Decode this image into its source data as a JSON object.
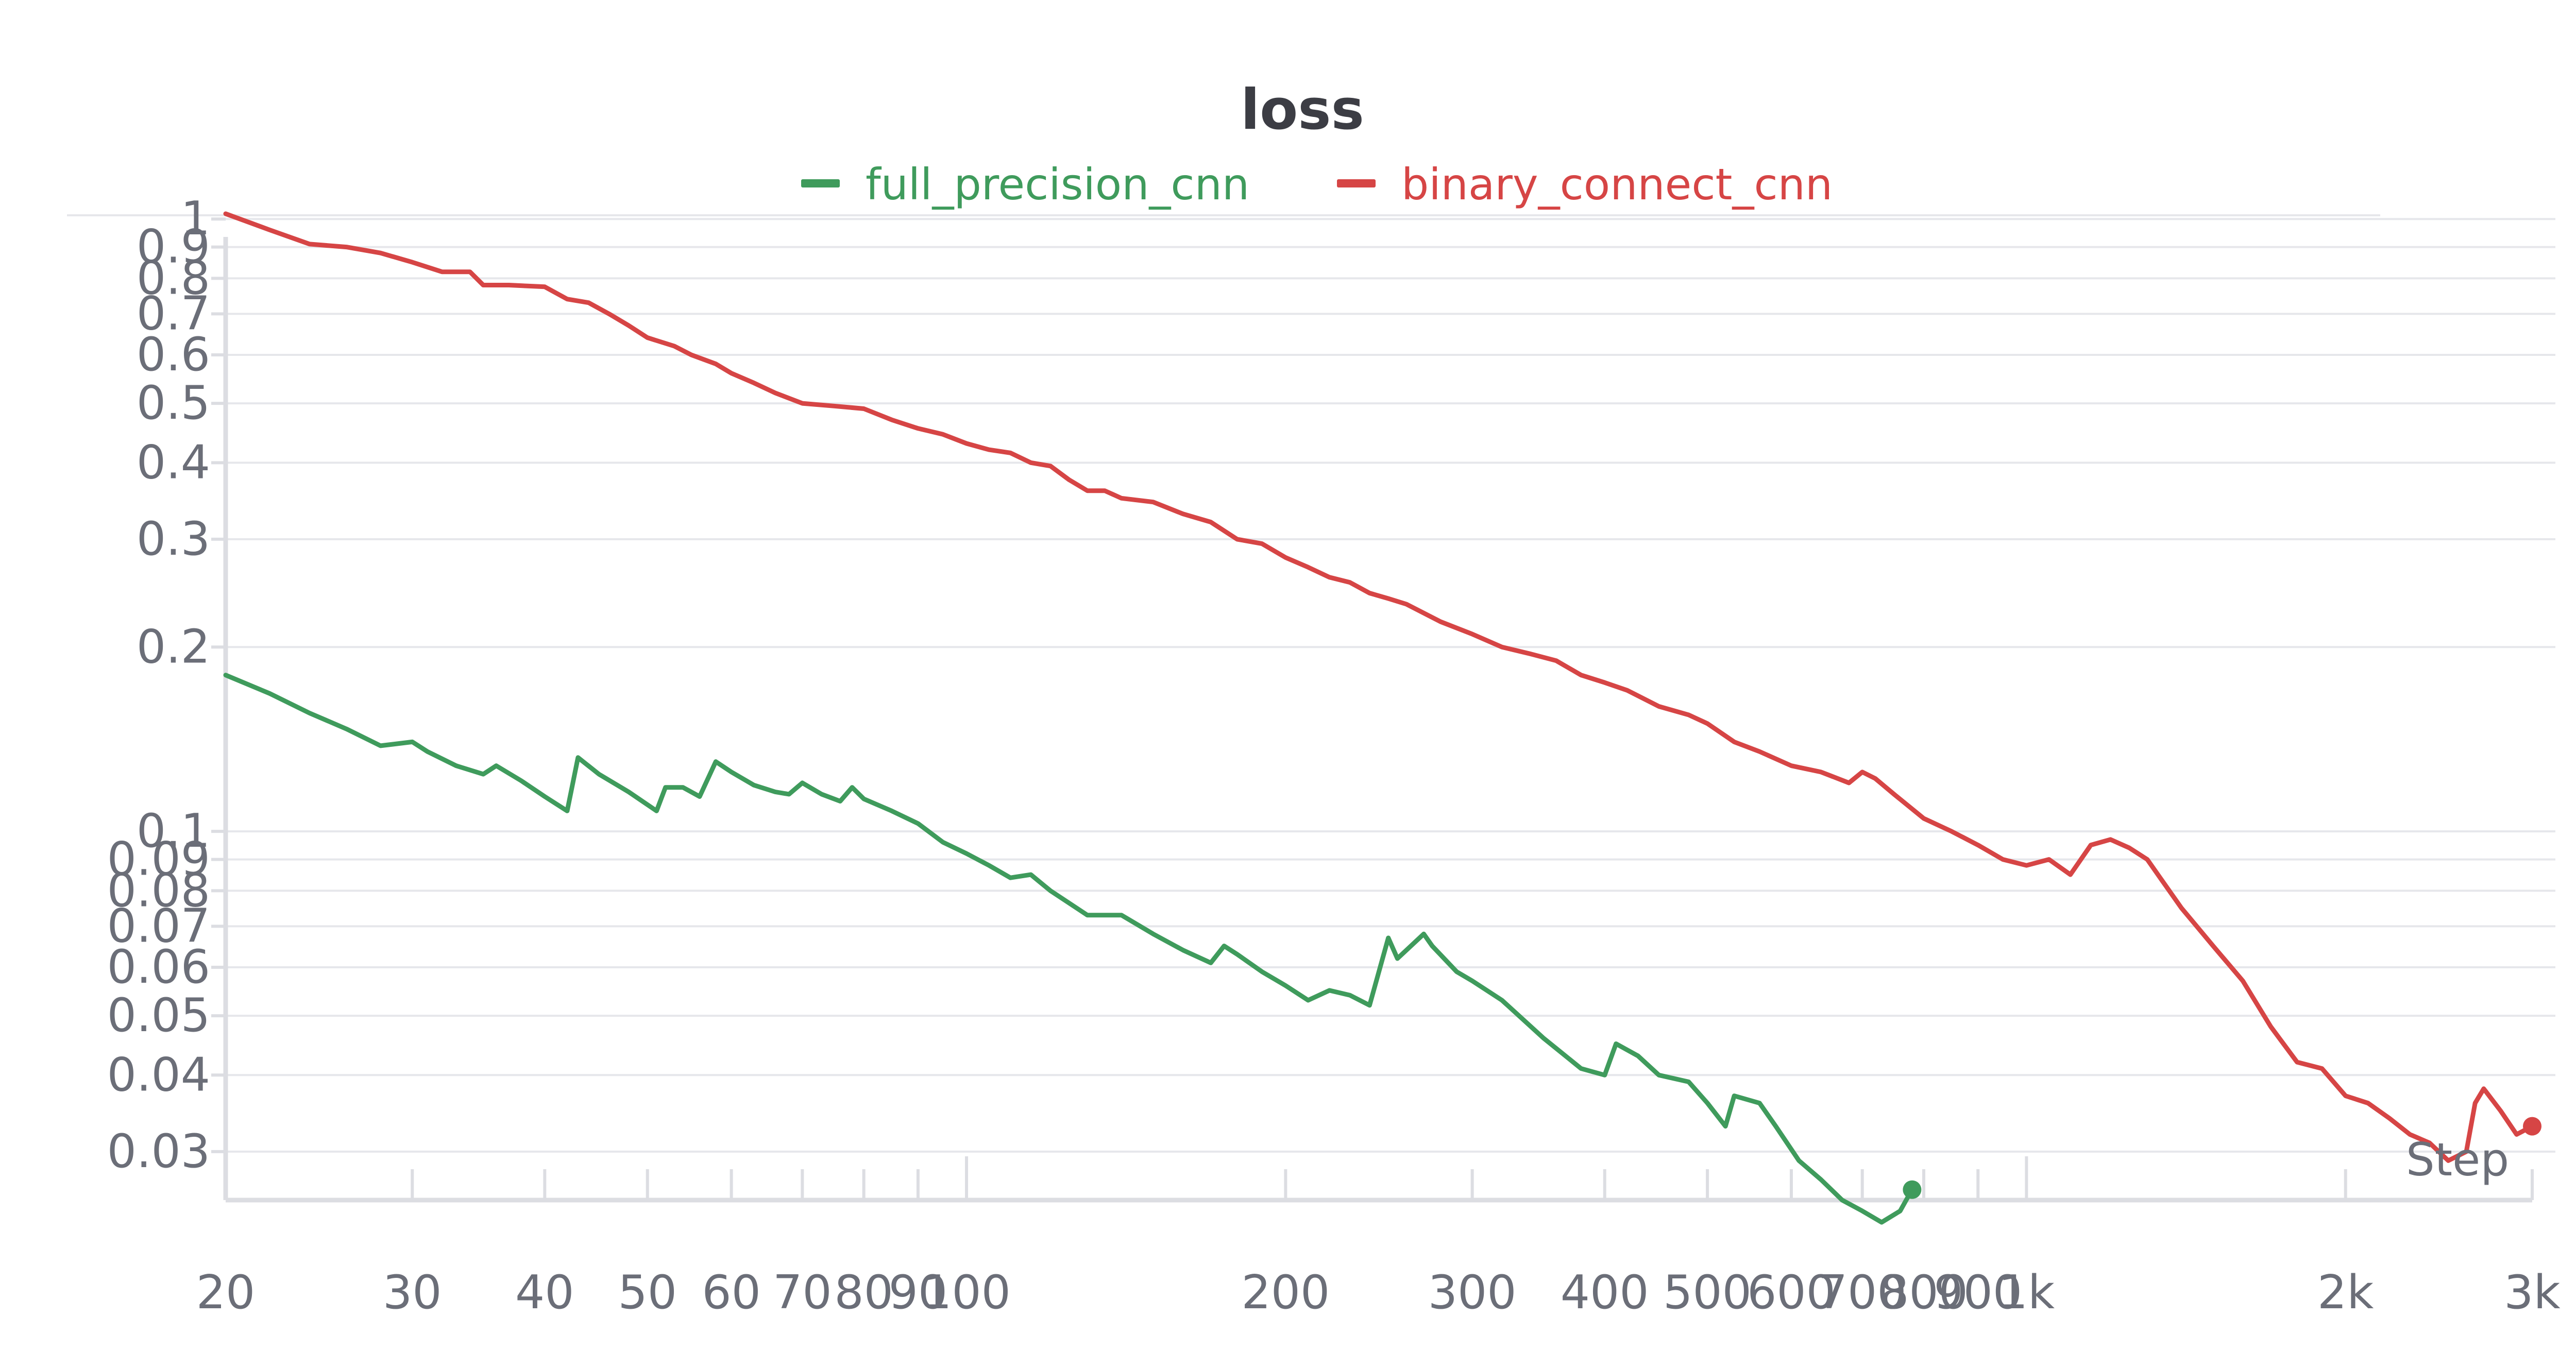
{
  "chart_data": {
    "type": "line",
    "title": "loss",
    "xlabel": "Step",
    "ylabel": "",
    "x_scale": "log",
    "y_scale": "log",
    "xlim": [
      20,
      3000
    ],
    "ylim": [
      0.025,
      1.05
    ],
    "grid": true,
    "legend_position": "top-center",
    "x_ticks": [
      {
        "value": 20,
        "label": "20"
      },
      {
        "value": 30,
        "label": "30"
      },
      {
        "value": 40,
        "label": "40"
      },
      {
        "value": 50,
        "label": "50"
      },
      {
        "value": 60,
        "label": "60"
      },
      {
        "value": 70,
        "label": "70"
      },
      {
        "value": 80,
        "label": "80"
      },
      {
        "value": 90,
        "label": "90"
      },
      {
        "value": 100,
        "label": "100"
      },
      {
        "value": 200,
        "label": "200"
      },
      {
        "value": 300,
        "label": "300"
      },
      {
        "value": 400,
        "label": "400"
      },
      {
        "value": 500,
        "label": "500"
      },
      {
        "value": 600,
        "label": "600"
      },
      {
        "value": 700,
        "label": "700"
      },
      {
        "value": 800,
        "label": "800"
      },
      {
        "value": 900,
        "label": "900"
      },
      {
        "value": 1000,
        "label": "1k"
      },
      {
        "value": 2000,
        "label": "2k"
      },
      {
        "value": 3000,
        "label": "3k"
      }
    ],
    "y_ticks": [
      {
        "value": 1,
        "label": "1"
      },
      {
        "value": 0.9,
        "label": "0.9"
      },
      {
        "value": 0.8,
        "label": "0.8"
      },
      {
        "value": 0.7,
        "label": "0.7"
      },
      {
        "value": 0.6,
        "label": "0.6"
      },
      {
        "value": 0.5,
        "label": "0.5"
      },
      {
        "value": 0.4,
        "label": "0.4"
      },
      {
        "value": 0.3,
        "label": "0.3"
      },
      {
        "value": 0.2,
        "label": "0.2"
      },
      {
        "value": 0.1,
        "label": "0.1"
      },
      {
        "value": 0.09,
        "label": "0.09"
      },
      {
        "value": 0.08,
        "label": "0.08"
      },
      {
        "value": 0.07,
        "label": "0.07"
      },
      {
        "value": 0.06,
        "label": "0.06"
      },
      {
        "value": 0.05,
        "label": "0.05"
      },
      {
        "value": 0.04,
        "label": "0.04"
      },
      {
        "value": 0.03,
        "label": "0.03"
      }
    ],
    "series": [
      {
        "name": "full_precision_cnn",
        "color": "#3f9b5c",
        "x": [
          20,
          22,
          24,
          26,
          28,
          30,
          31,
          33,
          35,
          36,
          38,
          40,
          42,
          43,
          45,
          48,
          51,
          52,
          54,
          56,
          58,
          60,
          63,
          66,
          68,
          70,
          73,
          76,
          78,
          80,
          85,
          90,
          95,
          100,
          105,
          110,
          115,
          120,
          130,
          140,
          150,
          160,
          170,
          175,
          180,
          190,
          200,
          210,
          220,
          230,
          240,
          250,
          255,
          270,
          275,
          290,
          300,
          320,
          350,
          380,
          400,
          410,
          430,
          450,
          480,
          500,
          520,
          530,
          560,
          580,
          610,
          640,
          670,
          700,
          730,
          760,
          770,
          780
        ],
        "y": [
          0.18,
          0.168,
          0.156,
          0.147,
          0.138,
          0.14,
          0.135,
          0.128,
          0.124,
          0.128,
          0.121,
          0.114,
          0.108,
          0.132,
          0.124,
          0.116,
          0.108,
          0.118,
          0.118,
          0.114,
          0.13,
          0.125,
          0.119,
          0.116,
          0.115,
          0.12,
          0.115,
          0.112,
          0.118,
          0.113,
          0.108,
          0.103,
          0.096,
          0.092,
          0.088,
          0.084,
          0.085,
          0.08,
          0.073,
          0.073,
          0.068,
          0.064,
          0.061,
          0.065,
          0.063,
          0.059,
          0.056,
          0.053,
          0.055,
          0.054,
          0.052,
          0.067,
          0.062,
          0.068,
          0.065,
          0.059,
          0.057,
          0.053,
          0.046,
          0.041,
          0.04,
          0.045,
          0.043,
          0.04,
          0.039,
          0.036,
          0.033,
          0.037,
          0.036,
          0.033,
          0.029,
          0.027,
          0.025,
          0.024,
          0.023,
          0.024,
          0.025,
          0.026
        ]
      },
      {
        "name": "binary_connect_cnn",
        "color": "#d64545",
        "x": [
          20,
          22,
          24,
          26,
          28,
          30,
          32,
          34,
          35,
          37,
          40,
          42,
          44,
          46,
          48,
          50,
          53,
          55,
          58,
          60,
          63,
          66,
          70,
          75,
          80,
          85,
          90,
          95,
          100,
          105,
          110,
          115,
          120,
          125,
          130,
          135,
          140,
          150,
          160,
          170,
          180,
          190,
          200,
          210,
          220,
          230,
          240,
          250,
          260,
          280,
          300,
          320,
          340,
          360,
          380,
          400,
          420,
          450,
          480,
          500,
          530,
          560,
          600,
          640,
          680,
          700,
          720,
          750,
          800,
          850,
          900,
          950,
          1000,
          1050,
          1100,
          1150,
          1200,
          1250,
          1300,
          1350,
          1400,
          1500,
          1600,
          1700,
          1800,
          1900,
          2000,
          2100,
          2200,
          2300,
          2400,
          2500,
          2600,
          2650,
          2700,
          2800,
          2900,
          3000
        ],
        "y": [
          1.02,
          0.96,
          0.91,
          0.9,
          0.88,
          0.85,
          0.82,
          0.82,
          0.78,
          0.78,
          0.775,
          0.74,
          0.73,
          0.7,
          0.67,
          0.64,
          0.62,
          0.6,
          0.58,
          0.56,
          0.54,
          0.52,
          0.5,
          0.495,
          0.49,
          0.47,
          0.455,
          0.445,
          0.43,
          0.42,
          0.415,
          0.4,
          0.395,
          0.375,
          0.36,
          0.36,
          0.35,
          0.345,
          0.33,
          0.32,
          0.3,
          0.295,
          0.28,
          0.27,
          0.26,
          0.255,
          0.245,
          0.24,
          0.235,
          0.22,
          0.21,
          0.2,
          0.195,
          0.19,
          0.18,
          0.175,
          0.17,
          0.16,
          0.155,
          0.15,
          0.14,
          0.135,
          0.128,
          0.125,
          0.12,
          0.125,
          0.122,
          0.115,
          0.105,
          0.1,
          0.095,
          0.09,
          0.088,
          0.09,
          0.085,
          0.095,
          0.097,
          0.094,
          0.09,
          0.082,
          0.075,
          0.065,
          0.057,
          0.048,
          0.042,
          0.041,
          0.037,
          0.036,
          0.034,
          0.032,
          0.031,
          0.029,
          0.03,
          0.036,
          0.038,
          0.035,
          0.032,
          0.033
        ]
      }
    ]
  }
}
